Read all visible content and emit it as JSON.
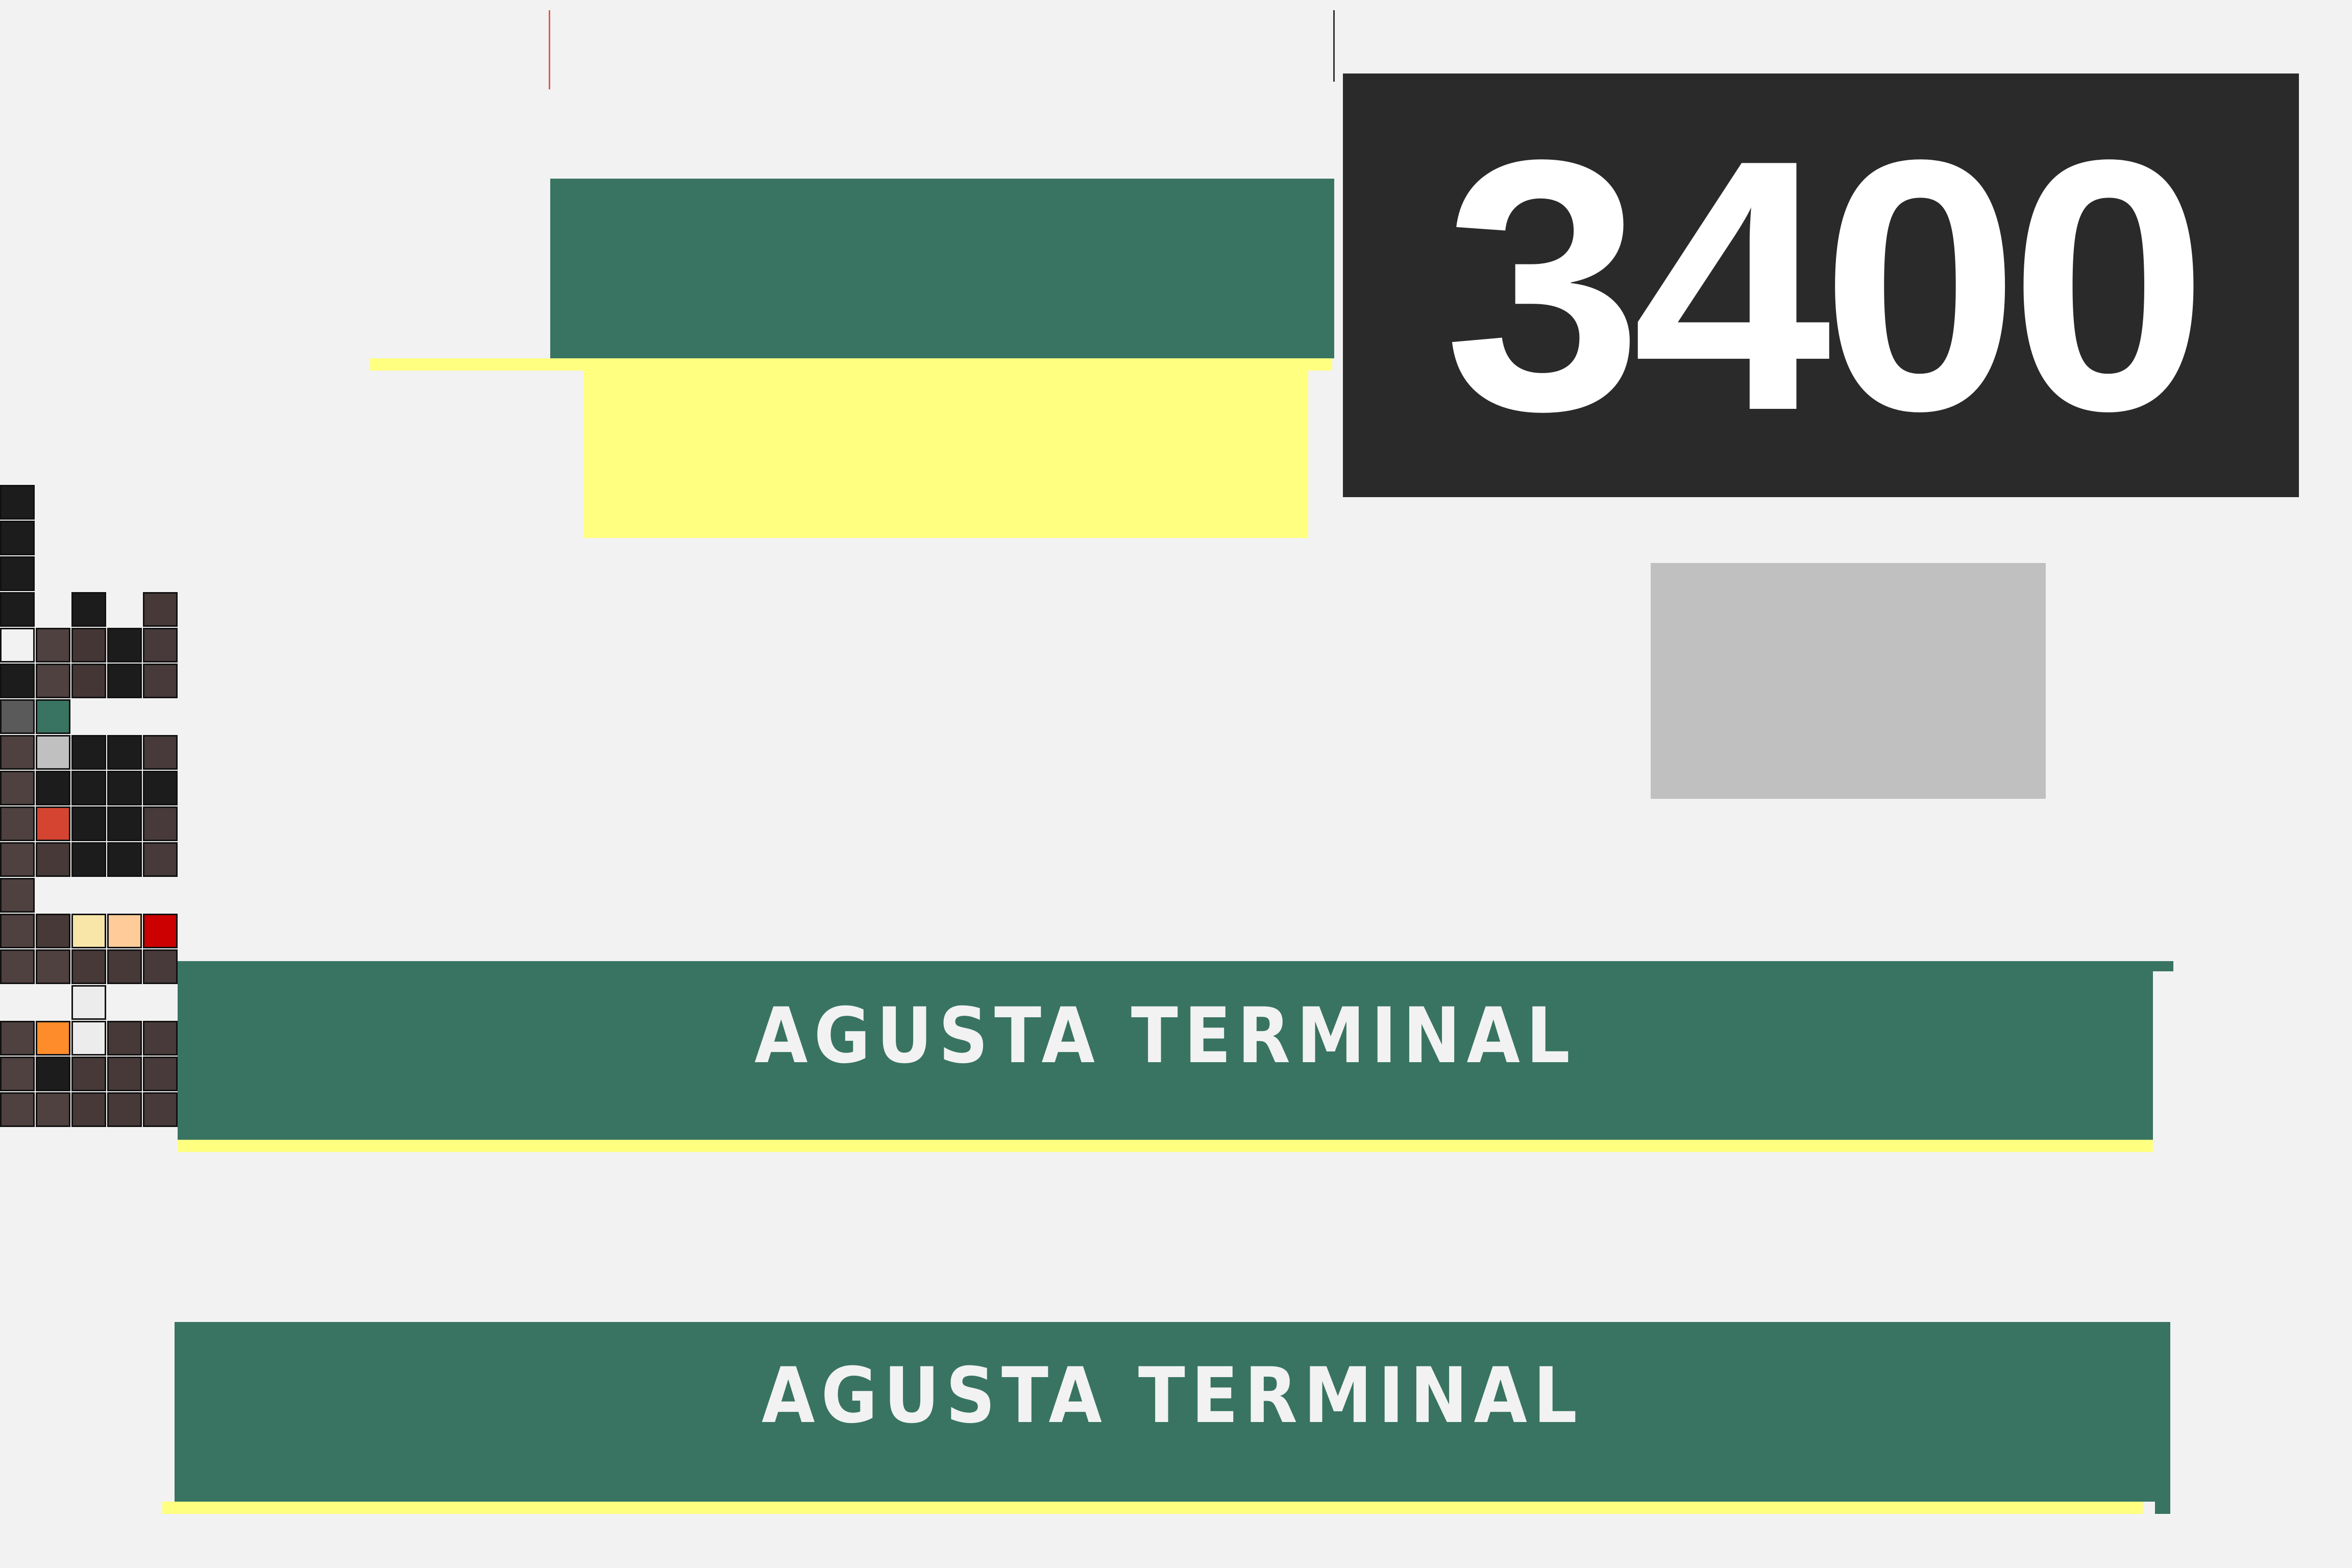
{
  "number_display": {
    "value": "3400"
  },
  "banners": [
    {
      "label": "AGUSTA TERMINAL"
    },
    {
      "label": "AGUSTA TERMINAL"
    }
  ],
  "colors": {
    "background": "#f2f2f2",
    "green": "#387461",
    "yellow": "#ffff80",
    "dark_panel": "#2a2a2a",
    "gray_block": "#c0c0c0"
  },
  "palette_cells": [
    "#1c1c1c",
    "#1c1c1c",
    "#1c1c1c",
    "#1c1c1c",
    "#1c1c1c",
    "#463938",
    "#f2f2f2",
    "#4f4140",
    "#453636",
    "#1c1c1c",
    "#483a3a",
    "#1c1c1c",
    "#4f4140",
    "#453636",
    "#1c1c1c",
    "#483a3a",
    "#5a5a5a",
    "#387461",
    "#4f4140",
    "#c0c0c0",
    "#1c1c1c",
    "#1c1c1c",
    "#483a3a",
    "#4f4140",
    "#1c1c1c",
    "#1c1c1c",
    "#1c1c1c",
    "#1c1c1c",
    "#4f4140",
    "#d44430",
    "#1c1c1c",
    "#1c1c1c",
    "#483a3a",
    "#4f4140",
    "#463938",
    "#1c1c1c",
    "#1c1c1c",
    "#483a3a",
    "#4f4140",
    "#4f4140",
    "#463938",
    "#f8e6a8",
    "#ffcc99",
    "#cc0000",
    "#4f4140",
    "#4f4140",
    "#463938",
    "#463938",
    "#483a3a",
    "#ececec",
    "#4f4140",
    "#ff8c2a",
    "#ececec",
    "#463938",
    "#483a3a",
    "#4f4140",
    "#1c1c1c",
    "#463938",
    "#463938",
    "#483a3a",
    "#4f4140",
    "#4f4140",
    "#463938",
    "#463938",
    "#483a3a"
  ]
}
